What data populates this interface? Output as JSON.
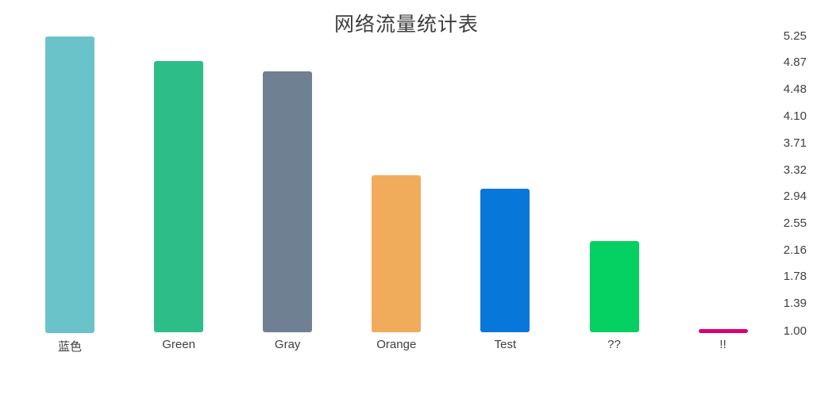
{
  "chart": {
    "title": "网络流量统计表"
  },
  "chart_data": {
    "type": "bar",
    "title": "网络流量统计表",
    "categories": [
      "蓝色",
      "Green",
      "Gray",
      "Orange",
      "Test",
      "??",
      "!!"
    ],
    "values": [
      5.25,
      4.9,
      4.75,
      3.25,
      3.05,
      2.3,
      1.0
    ],
    "bar_colors": [
      "#6BC3CA",
      "#2DBD88",
      "#6E8091",
      "#F0AC5B",
      "#0778D9",
      "#04D162",
      "#DA0072"
    ],
    "xlabel": "",
    "ylabel": "",
    "ylim": [
      1.0,
      5.25
    ],
    "y_ticks": [
      "5.25",
      "4.87",
      "4.48",
      "4.10",
      "3.71",
      "3.32",
      "2.94",
      "2.55",
      "2.16",
      "1.78",
      "1.39",
      "1.00"
    ],
    "y_axis_side": "right",
    "grid": false,
    "legend": false,
    "background": "#FFFFFF",
    "text_color": "#404040"
  }
}
